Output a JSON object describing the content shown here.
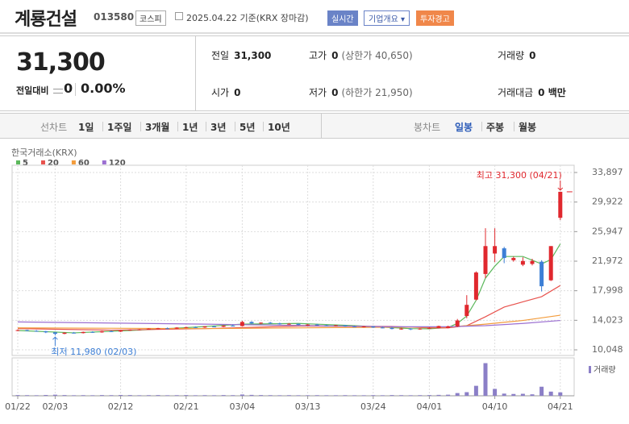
{
  "header": {
    "name": "계룡건설",
    "code": "013580",
    "market": "코스피",
    "date": "2025.04.22 기준(KRX 장마감)",
    "buttons": [
      "실시간",
      "기업개요 ▾",
      "투자경고"
    ]
  },
  "quote": {
    "price": "31,300",
    "change_label": "전일대비",
    "change": "0",
    "change_rate": "0.00%"
  },
  "info": [
    {
      "label": "전일",
      "value": "31,300"
    },
    {
      "label": "고가",
      "value": "0",
      "sub": "(상한가 40,650)"
    },
    {
      "label": "거래량",
      "value": "0"
    },
    {
      "label": "시가",
      "value": "0"
    },
    {
      "label": "저가",
      "value": "0",
      "sub": "(하한가 21,950)"
    },
    {
      "label": "거래대금",
      "value": "0 백만"
    }
  ],
  "tabs": {
    "line": "선차트",
    "line_periods": [
      "1일",
      "1주일",
      "3개월",
      "1년",
      "3년",
      "5년",
      "10년"
    ],
    "candle": "봉차트",
    "candle_periods": [
      "일봉",
      "주봉",
      "월봉"
    ]
  },
  "chart_data": {
    "type": "candlestick",
    "source": "한국거래소(KRX)",
    "categories": [
      "01/22",
      null,
      null,
      null,
      "02/03",
      null,
      null,
      null,
      null,
      null,
      null,
      "02/12",
      null,
      null,
      null,
      null,
      null,
      null,
      "02/21",
      null,
      null,
      null,
      null,
      null,
      "03/04",
      null,
      null,
      null,
      null,
      null,
      null,
      "03/13",
      null,
      null,
      null,
      null,
      null,
      null,
      "03/24",
      null,
      null,
      null,
      null,
      null,
      "04/01",
      null,
      null,
      null,
      null,
      null,
      null,
      "04/10",
      null,
      null,
      null,
      null,
      null,
      null,
      "04/21"
    ],
    "open": [
      12600,
      12700,
      12600,
      12550,
      12400,
      12200,
      12350,
      12300,
      12450,
      12400,
      12550,
      12500,
      12650,
      12750,
      12800,
      12900,
      12950,
      12900,
      13050,
      13100,
      13050,
      13200,
      13150,
      13300,
      13250,
      13800,
      13600,
      13700,
      13600,
      13500,
      13550,
      13400,
      13450,
      13350,
      13300,
      13350,
      13200,
      13150,
      13200,
      13050,
      13000,
      12850,
      12900,
      12800,
      12900,
      13000,
      13000,
      13200,
      14600,
      16800,
      20250,
      23000,
      23700,
      22100,
      21500,
      21600,
      21900,
      19400,
      27800
    ],
    "high": [
      12800,
      12750,
      12700,
      12600,
      12450,
      12400,
      12450,
      12500,
      12550,
      12600,
      12650,
      12700,
      12800,
      12850,
      12950,
      13000,
      13050,
      13100,
      13150,
      13200,
      13250,
      13300,
      13350,
      13450,
      13950,
      13900,
      13750,
      13800,
      13700,
      13650,
      13600,
      13500,
      13550,
      13450,
      13400,
      13400,
      13300,
      13250,
      13250,
      13150,
      13100,
      13000,
      12950,
      12950,
      13100,
      13300,
      13300,
      14200,
      17400,
      20600,
      26400,
      26400,
      23900,
      22600,
      22500,
      22300,
      22100,
      24000,
      31300
    ],
    "low": [
      12550,
      12550,
      12500,
      12300,
      11980,
      12150,
      12250,
      12250,
      12350,
      12350,
      12450,
      12450,
      12600,
      12650,
      12750,
      12800,
      12850,
      12850,
      12950,
      13000,
      13000,
      13100,
      13100,
      13200,
      13200,
      13550,
      13500,
      13550,
      13450,
      13400,
      13350,
      13300,
      13300,
      13250,
      13200,
      13150,
      13100,
      13050,
      13000,
      12950,
      12800,
      12750,
      12700,
      12750,
      12850,
      12950,
      12950,
      13100,
      14300,
      16700,
      19700,
      21850,
      21700,
      21900,
      21300,
      21400,
      17900,
      19300,
      27500
    ],
    "close": [
      12700,
      12600,
      12550,
      12400,
      12200,
      12350,
      12300,
      12450,
      12400,
      12550,
      12500,
      12650,
      12750,
      12800,
      12900,
      12950,
      12900,
      13050,
      13100,
      13050,
      13200,
      13150,
      13300,
      13250,
      13800,
      13600,
      13700,
      13600,
      13500,
      13550,
      13400,
      13450,
      13350,
      13300,
      13350,
      13200,
      13150,
      13200,
      13050,
      13000,
      12850,
      12900,
      12800,
      12900,
      13000,
      13250,
      13200,
      14000,
      16100,
      20450,
      24000,
      24000,
      22400,
      22400,
      22000,
      22000,
      18600,
      24000,
      31300
    ],
    "up_color": "#e0282e",
    "down_color": "#3d7fd6",
    "ma": [
      {
        "name": "5",
        "color": "#5cb85c",
        "x": [
          0,
          6,
          12,
          18,
          24,
          30,
          36,
          42,
          44,
          46,
          47,
          48,
          49,
          50,
          51,
          52,
          54,
          56,
          57,
          58
        ],
        "values": [
          12650,
          12330,
          12650,
          13030,
          13500,
          13600,
          13300,
          12900,
          12880,
          13050,
          13600,
          14600,
          16700,
          19700,
          21300,
          22600,
          22600,
          21600,
          22200,
          24300
        ]
      },
      {
        "name": "20",
        "color": "#e8534e",
        "x": [
          0,
          10,
          20,
          30,
          40,
          44,
          46,
          48,
          50,
          52,
          54,
          56,
          58
        ],
        "values": [
          12900,
          12700,
          12900,
          13250,
          13200,
          13000,
          13000,
          13300,
          14500,
          15800,
          16500,
          17200,
          18700
        ]
      },
      {
        "name": "60",
        "color": "#f39c3c",
        "x": [
          0,
          20,
          40,
          46,
          50,
          54,
          58
        ],
        "values": [
          13000,
          12900,
          13100,
          13100,
          13500,
          14000,
          14700
        ]
      },
      {
        "name": "120",
        "color": "#9b6fd1",
        "x": [
          0,
          20,
          40,
          46,
          50,
          54,
          58
        ],
        "values": [
          13800,
          13500,
          13150,
          13150,
          13300,
          13600,
          14000
        ]
      }
    ],
    "volume": {
      "name": "거래량",
      "color": "#8b7fc7",
      "ylim": [
        0,
        2000000
      ],
      "values": [
        40000,
        35000,
        30000,
        45000,
        60000,
        40000,
        30000,
        35000,
        30000,
        40000,
        35000,
        45000,
        40000,
        30000,
        35000,
        40000,
        30000,
        35000,
        40000,
        30000,
        35000,
        30000,
        40000,
        35000,
        70000,
        50000,
        40000,
        35000,
        30000,
        35000,
        30000,
        30000,
        35000,
        30000,
        30000,
        35000,
        30000,
        30000,
        35000,
        30000,
        40000,
        35000,
        30000,
        35000,
        40000,
        50000,
        60000,
        150000,
        200000,
        550000,
        1800000,
        380000,
        120000,
        100000,
        110000,
        80000,
        500000,
        230000,
        190000
      ]
    },
    "ylim": [
      9290,
      34870
    ],
    "yticks": [
      {
        "value": 33897,
        "label": "33,897"
      },
      {
        "value": 29922,
        "label": "29,922"
      },
      {
        "value": 25947,
        "label": "25,947"
      },
      {
        "value": 21972,
        "label": "21,972"
      },
      {
        "value": 17998,
        "label": "17,998"
      },
      {
        "value": 14023,
        "label": "14,023"
      },
      {
        "value": 10048,
        "label": "10,048"
      }
    ],
    "grid": true,
    "annotations": [
      {
        "text": "최고 31,300 (04/21)",
        "value": 31300,
        "color": "#e0282e"
      },
      {
        "text": "최저 11,980 (02/03)",
        "value": 11980,
        "color": "#3d7fd6"
      }
    ]
  }
}
